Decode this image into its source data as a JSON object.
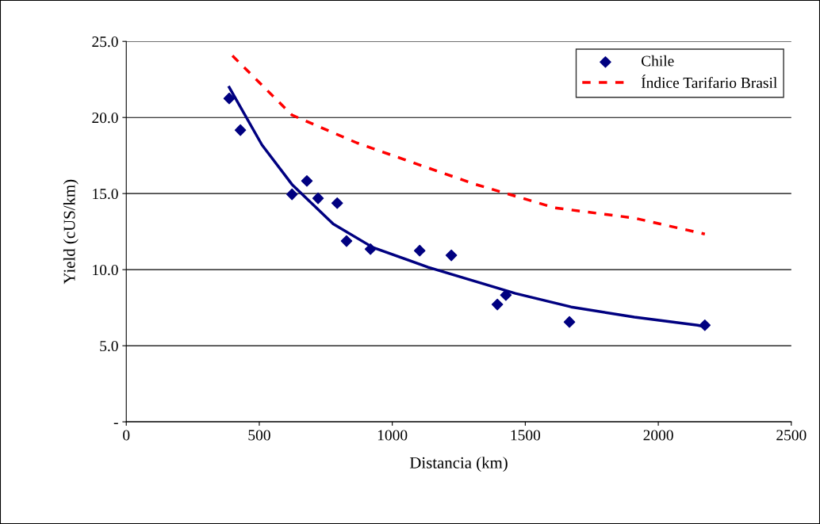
{
  "chart_data": {
    "type": "scatter",
    "xlabel": "Distancia (km)",
    "ylabel": "Yield (cUS/km)",
    "xlim": [
      0,
      2500
    ],
    "xticks": [
      0,
      500,
      1000,
      1500,
      2000,
      2500
    ],
    "ylim": [
      0,
      25
    ],
    "yticks": [
      {
        "value": 0,
        "label": "-"
      },
      {
        "value": 5,
        "label": "5.0"
      },
      {
        "value": 10,
        "label": "10.0"
      },
      {
        "value": 15,
        "label": "15.0"
      },
      {
        "value": 20,
        "label": "20.0"
      },
      {
        "value": 25,
        "label": "25.0"
      }
    ],
    "grid": "y",
    "legend": "top right",
    "series": [
      {
        "name": "Chile",
        "marker": "diamond",
        "color": "#000080",
        "x": [
          387,
          429,
          623,
          679,
          721,
          793,
          828,
          918,
          1103,
          1222,
          1395,
          1427,
          1666,
          2175
        ],
        "values": [
          21.25,
          19.17,
          14.95,
          15.83,
          14.69,
          14.37,
          11.88,
          11.35,
          11.25,
          10.94,
          7.71,
          8.33,
          6.56,
          6.35
        ]
      },
      {
        "type": "line",
        "line_style": "solid",
        "color": "#000080",
        "x": [
          387,
          510,
          623,
          778,
          927,
          1135,
          1314,
          1463,
          1672,
          1910,
          2148,
          2175
        ],
        "values": [
          21.98,
          18.2,
          15.6,
          13.0,
          11.46,
          10.16,
          9.22,
          8.44,
          7.55,
          6.88,
          6.35,
          6.25
        ]
      },
      {
        "name": "Índice Tarifario Brasil",
        "type": "line",
        "line_style": "dashed",
        "color": "#ff0000",
        "x": [
          399,
          623,
          867,
          1165,
          1314,
          1612,
          1910,
          2175
        ],
        "values": [
          24.06,
          20.16,
          18.33,
          16.5,
          15.6,
          14.06,
          13.39,
          12.34
        ]
      }
    ]
  }
}
